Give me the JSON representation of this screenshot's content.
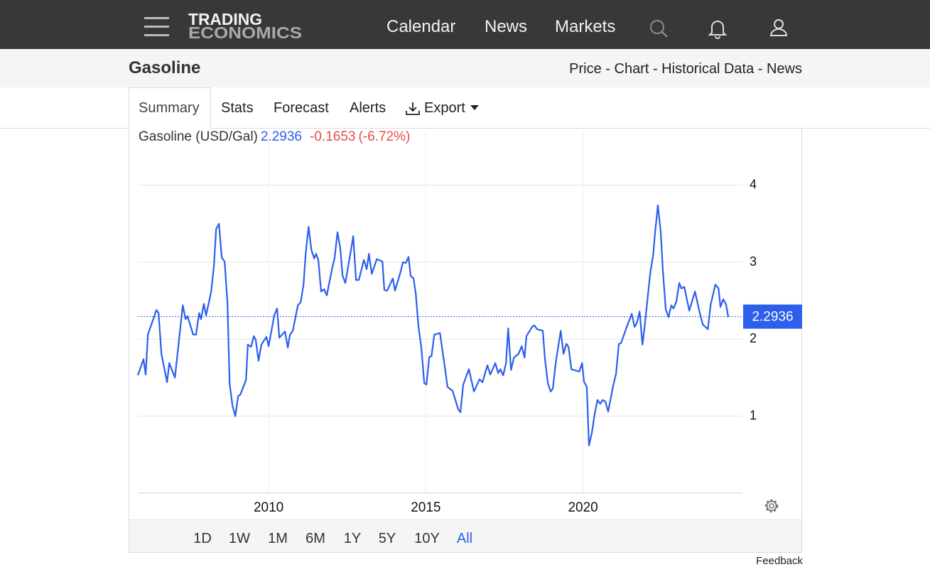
{
  "nav": {
    "logo_top": "TRADING",
    "logo_bottom": "ECONOMICS",
    "links": [
      "Calendar",
      "News",
      "Markets"
    ]
  },
  "header": {
    "title": "Gasoline",
    "links": "Price - Chart - Historical Data - News"
  },
  "tabs": [
    "Summary",
    "Stats",
    "Forecast",
    "Alerts",
    "Export"
  ],
  "chart_data": {
    "type": "line",
    "last_value": 2.2936,
    "change": -0.1653,
    "change_percent": "(-6.72%)",
    "x": [
      2005.84,
      2006.02,
      2006.09,
      2006.16,
      2006.34,
      2006.43,
      2006.5,
      2006.59,
      2006.77,
      2006.84,
      2007.02,
      2007.27,
      2007.36,
      2007.42,
      2007.6,
      2007.69,
      2007.79,
      2007.85,
      2007.94,
      2008.01,
      2008.17,
      2008.26,
      2008.33,
      2008.42,
      2008.51,
      2008.6,
      2008.69,
      2008.76,
      2008.85,
      2008.94,
      2009.03,
      2009.1,
      2009.28,
      2009.34,
      2009.44,
      2009.53,
      2009.59,
      2009.68,
      2009.77,
      2009.93,
      2010.0,
      2010.18,
      2010.27,
      2010.34,
      2010.52,
      2010.61,
      2010.68,
      2010.77,
      2010.93,
      2011.02,
      2011.11,
      2011.18,
      2011.27,
      2011.36,
      2011.45,
      2011.51,
      2011.58,
      2011.67,
      2011.76,
      2011.85,
      2012.01,
      2012.1,
      2012.19,
      2012.28,
      2012.35,
      2012.44,
      2012.62,
      2012.69,
      2012.78,
      2012.87,
      2013.03,
      2013.12,
      2013.19,
      2013.28,
      2013.44,
      2013.62,
      2013.68,
      2013.77,
      2013.95,
      2014.02,
      2014.2,
      2014.27,
      2014.36,
      2014.45,
      2014.52,
      2014.61,
      2014.68,
      2014.77,
      2014.86,
      2014.95,
      2015.02,
      2015.11,
      2015.18,
      2015.27,
      2015.45,
      2015.6,
      2015.69,
      2015.85,
      2016.03,
      2016.1,
      2016.19,
      2016.37,
      2016.53,
      2016.71,
      2016.8,
      2016.96,
      2017.05,
      2017.21,
      2017.3,
      2017.37,
      2017.46,
      2017.55,
      2017.62,
      2017.71,
      2017.8,
      2017.95,
      2018.05,
      2018.14,
      2018.2,
      2018.38,
      2018.45,
      2018.54,
      2018.72,
      2018.79,
      2018.88,
      2018.97,
      2019.04,
      2019.13,
      2019.29,
      2019.38,
      2019.47,
      2019.54,
      2019.63,
      2019.88,
      2019.97,
      2020.03,
      2020.12,
      2020.19,
      2020.28,
      2020.37,
      2020.46,
      2020.55,
      2020.62,
      2020.71,
      2020.8,
      2020.96,
      2021.05,
      2021.14,
      2021.21,
      2021.39,
      2021.55,
      2021.64,
      2021.71,
      2021.8,
      2021.89,
      2021.95,
      2022.14,
      2022.23,
      2022.29,
      2022.38,
      2022.47,
      2022.54,
      2022.63,
      2022.72,
      2022.81,
      2022.88,
      2022.97,
      2023.06,
      2023.13,
      2023.22,
      2023.38,
      2023.56,
      2023.72,
      2023.81,
      2023.97,
      2024.06,
      2024.21,
      2024.31,
      2024.37,
      2024.46,
      2024.55,
      2024.62
    ],
    "series": [
      {
        "name": "Gasoline (USD/Gal)",
        "color": "#2b5fec",
        "values": [
          1.53,
          1.74,
          1.54,
          2.06,
          2.27,
          2.38,
          2.34,
          1.81,
          1.44,
          1.69,
          1.5,
          2.44,
          2.26,
          2.3,
          2.06,
          2.06,
          2.34,
          2.26,
          2.46,
          2.31,
          2.61,
          2.95,
          3.43,
          3.5,
          3.06,
          3.01,
          2.48,
          1.42,
          1.14,
          1.0,
          1.26,
          1.28,
          1.47,
          1.93,
          1.9,
          2.04,
          1.99,
          1.72,
          1.93,
          2.03,
          1.91,
          2.31,
          2.4,
          2.02,
          2.1,
          1.89,
          2.06,
          2.11,
          2.44,
          2.48,
          2.71,
          3.12,
          3.46,
          3.16,
          3.05,
          3.11,
          3.03,
          2.62,
          2.65,
          2.57,
          2.9,
          3.06,
          3.39,
          3.18,
          2.83,
          2.73,
          3.16,
          3.34,
          2.77,
          2.77,
          3.03,
          2.91,
          3.11,
          2.85,
          3.04,
          3.01,
          2.64,
          2.63,
          2.79,
          2.63,
          2.88,
          3.0,
          2.99,
          3.07,
          2.82,
          2.79,
          2.59,
          2.15,
          1.88,
          1.43,
          1.41,
          1.77,
          1.78,
          2.06,
          2.08,
          1.65,
          1.38,
          1.33,
          1.09,
          1.05,
          1.41,
          1.61,
          1.32,
          1.48,
          1.44,
          1.66,
          1.54,
          1.69,
          1.56,
          1.61,
          1.53,
          1.69,
          2.14,
          1.6,
          1.76,
          1.81,
          1.91,
          1.76,
          2.04,
          2.16,
          2.18,
          2.13,
          2.11,
          1.74,
          1.43,
          1.32,
          1.36,
          1.69,
          2.11,
          1.81,
          1.94,
          1.9,
          1.61,
          1.58,
          1.69,
          1.45,
          1.38,
          0.62,
          0.78,
          1.03,
          1.21,
          1.16,
          1.21,
          1.19,
          1.06,
          1.4,
          1.55,
          1.94,
          1.95,
          2.16,
          2.33,
          2.16,
          2.21,
          2.36,
          1.93,
          2.13,
          2.87,
          3.09,
          3.38,
          3.74,
          3.4,
          2.89,
          2.39,
          2.29,
          2.44,
          2.4,
          2.49,
          2.73,
          2.66,
          2.68,
          2.37,
          2.62,
          2.33,
          2.19,
          2.13,
          2.45,
          2.71,
          2.66,
          2.42,
          2.52,
          2.45,
          2.29
        ]
      }
    ],
    "xlim": [
      2005.84,
      2025.07
    ],
    "xticks": [
      2010,
      2015,
      2020
    ],
    "ylim": [
      0,
      4.7
    ],
    "yticks": [
      1,
      2,
      3,
      4
    ],
    "grid": true,
    "ranges": [
      "1D",
      "1W",
      "1M",
      "6M",
      "1Y",
      "5Y",
      "10Y",
      "All"
    ],
    "active_range": 7
  },
  "feedback": "Feedback"
}
